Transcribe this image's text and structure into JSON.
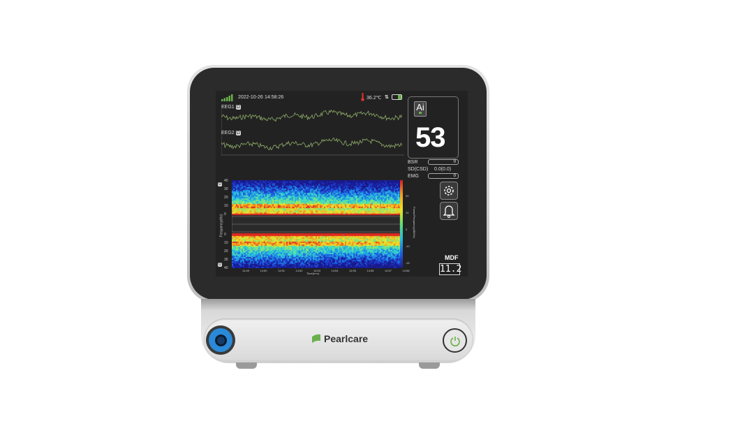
{
  "brand": "Pearlcare",
  "status_bar": {
    "date": "2022-10-26",
    "time": "14:58:26",
    "temperature": "36.2℃",
    "signal_bars": 5,
    "battery_level": 0.8
  },
  "waveforms": [
    {
      "label": "EEG1",
      "badge": "Ω"
    },
    {
      "label": "EEG2",
      "badge": "Ω"
    }
  ],
  "index_panel": {
    "ai_label": "Ai",
    "value": "53"
  },
  "params": [
    {
      "label": "BSR",
      "value": "0"
    },
    {
      "label": "SD(CSD)",
      "value": "0.0(0.0)"
    },
    {
      "label": "EMG",
      "value": "0"
    }
  ],
  "spectrogram": {
    "y_ticks": [
      "40",
      "30",
      "20",
      "10",
      "0"
    ],
    "y_label": "Frequency(Hz)",
    "x_ticks": [
      "14:49",
      "14:50",
      "14:51",
      "14:52",
      "14:53",
      "14:54",
      "14:55",
      "14:56",
      "14:57",
      "14:58"
    ],
    "x_label": "Time(h:m)",
    "colorbar_ticks": [
      "20",
      "10",
      "0",
      "-10",
      "-20"
    ],
    "colorbar_label": "Power/Frequency(dB/Hz)",
    "channel_badges": [
      "Ω",
      "Ω"
    ]
  },
  "mdf": {
    "label": "MDF",
    "value": "11.2"
  },
  "colors": {
    "trace": "#8fae6a",
    "accent_green": "#6ab04c",
    "port_blue": "#2a8ad8"
  }
}
